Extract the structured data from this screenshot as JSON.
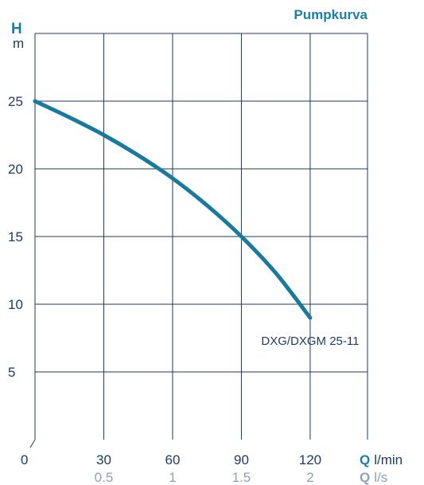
{
  "chart_data": {
    "type": "line",
    "title": "Pumpkurva",
    "y_axis": {
      "label": "H",
      "unit": "m",
      "ticks": [
        5,
        10,
        15,
        20,
        25
      ],
      "ylim": [
        0,
        30
      ]
    },
    "x_axis": {
      "label": "Q",
      "unit": "l/min",
      "ticks": [
        30,
        60,
        90,
        120
      ],
      "xlim": [
        0,
        145
      ],
      "origin_label": "0"
    },
    "x_axis_secondary": {
      "label": "Q",
      "unit": "l/s",
      "ticks": [
        "0.5",
        "1",
        "1.5",
        "2"
      ]
    },
    "grid": true,
    "series": [
      {
        "name": "DXG/DXGM 25-11",
        "x": [
          0,
          15,
          30,
          45,
          60,
          75,
          90,
          105,
          120
        ],
        "y": [
          25,
          23.8,
          22.5,
          21.0,
          19.3,
          17.3,
          15.0,
          12.3,
          9.0
        ]
      }
    ],
    "colors": {
      "curve": "#1a7a9e",
      "title": "#1a7fa6",
      "axis_text": "#1d3a5f",
      "secondary_text": "#8fa1b5",
      "grid": "#1d3a5f"
    }
  }
}
